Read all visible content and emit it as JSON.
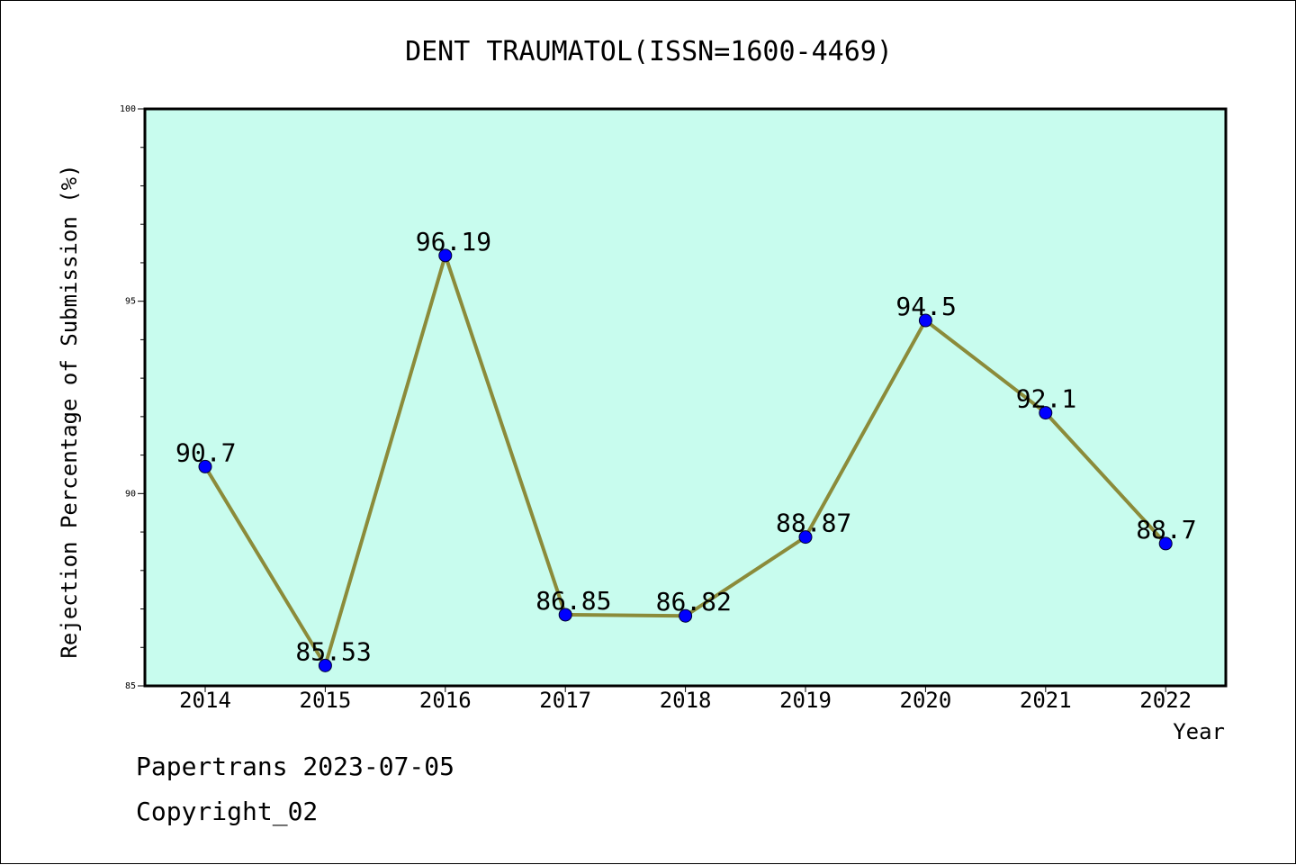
{
  "chart_data": {
    "type": "line",
    "title": "DENT TRAUMATOL(ISSN=1600-4469)",
    "xlabel": "Year",
    "ylabel": "Rejection Percentage of Submission (%)",
    "categories": [
      "2014",
      "2015",
      "2016",
      "2017",
      "2018",
      "2019",
      "2020",
      "2021",
      "2022"
    ],
    "series": [
      {
        "values": [
          90.7,
          85.53,
          96.19,
          86.85,
          86.82,
          88.87,
          94.5,
          92.1,
          88.7
        ],
        "labels": [
          "90.7",
          "85.53",
          "96.19",
          "86.85",
          "86.82",
          "88.87",
          "94.5",
          "92.1",
          "88.7"
        ],
        "line_color": "#8b8b3a",
        "marker_color": "#0000ff"
      }
    ],
    "ylim": [
      85,
      100
    ],
    "yticks": [
      85,
      90,
      95,
      100
    ],
    "grid": false,
    "plot_background": "#c8fcee"
  },
  "footer": {
    "line1": "Papertrans 2023-07-05",
    "line2": "Copyright_02"
  }
}
